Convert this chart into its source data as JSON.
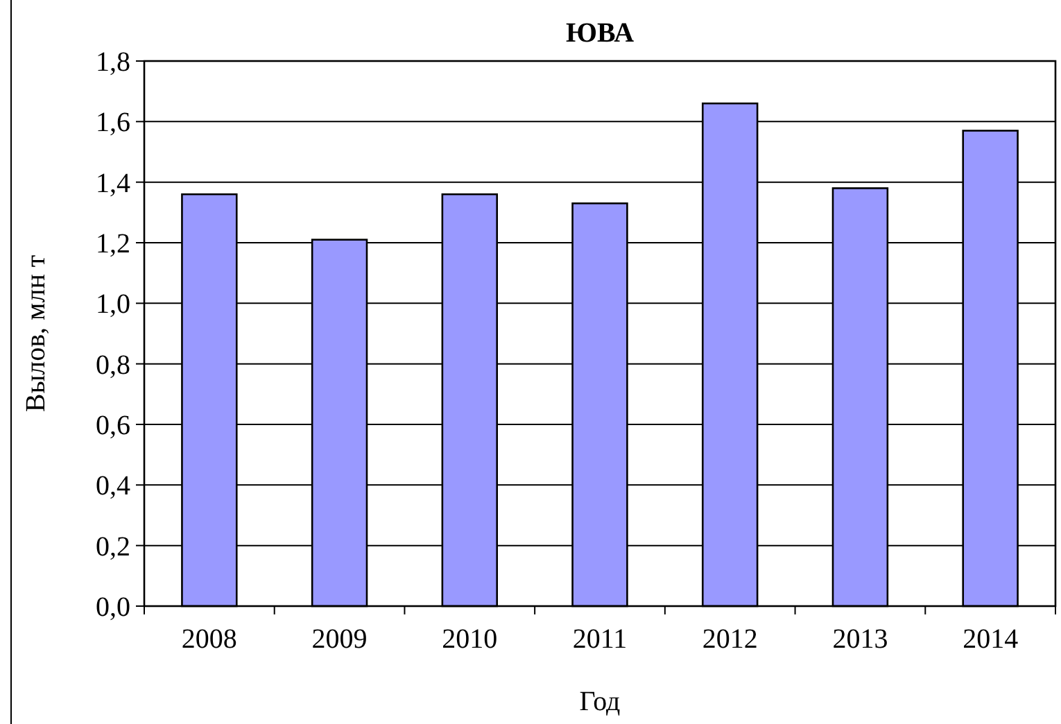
{
  "chart_data": {
    "type": "bar",
    "title": "ЮВА",
    "xlabel": "Год",
    "ylabel": "Вылов, млн т",
    "categories": [
      "2008",
      "2009",
      "2010",
      "2011",
      "2012",
      "2013",
      "2014"
    ],
    "values": [
      1.36,
      1.21,
      1.36,
      1.33,
      1.66,
      1.38,
      1.57
    ],
    "color": "#9999ff",
    "ylim": [
      0,
      1.8
    ],
    "yticks": [
      {
        "value": 0,
        "label": "0,0"
      },
      {
        "value": 0.2,
        "label": "0,2"
      },
      {
        "value": 0.4,
        "label": "0,4"
      },
      {
        "value": 0.6,
        "label": "0,6"
      },
      {
        "value": 0.8,
        "label": "0,8"
      },
      {
        "value": 1,
        "label": "1,0"
      },
      {
        "value": 1.2,
        "label": "1,2"
      },
      {
        "value": 1.4,
        "label": "1,4"
      },
      {
        "value": 1.6,
        "label": "1,6"
      },
      {
        "value": 1.8,
        "label": "1,8"
      }
    ],
    "grid": "y"
  }
}
